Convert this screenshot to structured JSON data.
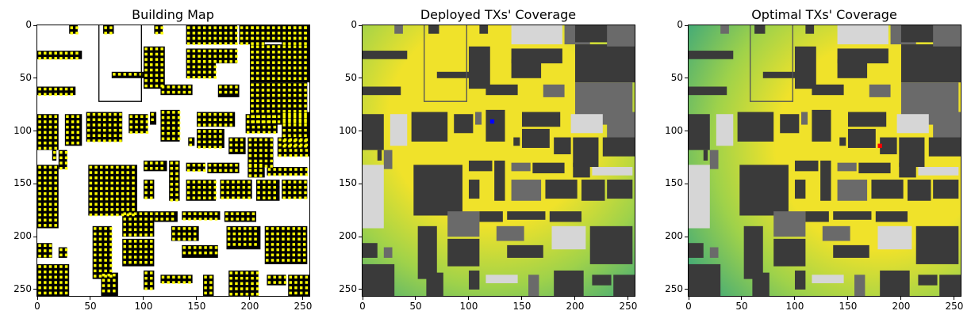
{
  "figure": {
    "panels": [
      {
        "title": "Building Map"
      },
      {
        "title": "Deployed TXs' Coverage"
      },
      {
        "title": "Optimal TXs' Coverage"
      }
    ],
    "axis": {
      "range": [
        0,
        256
      ],
      "x_ticks": [
        "0",
        "50",
        "100",
        "150",
        "200",
        "250"
      ],
      "y_ticks": [
        "0",
        "50",
        "100",
        "150",
        "200",
        "250"
      ]
    },
    "colors": {
      "building": "#000000",
      "candidate": "#ffff00",
      "background": "#ffffff",
      "roof_dark": "#3a3a3a",
      "roof_mid": "#6a6a6a",
      "roof_light": "#d6d6d6",
      "coverage_high": "#f0e22a",
      "coverage_mid": "#9fd24a",
      "coverage_low": "#3ea87a",
      "deployed_tx": "#0000ff",
      "optimal_tx": "#ff0000"
    },
    "tx": {
      "deployed": {
        "x": 122,
        "y": 91
      },
      "optimal": {
        "x": 180,
        "y": 114
      }
    }
  }
}
